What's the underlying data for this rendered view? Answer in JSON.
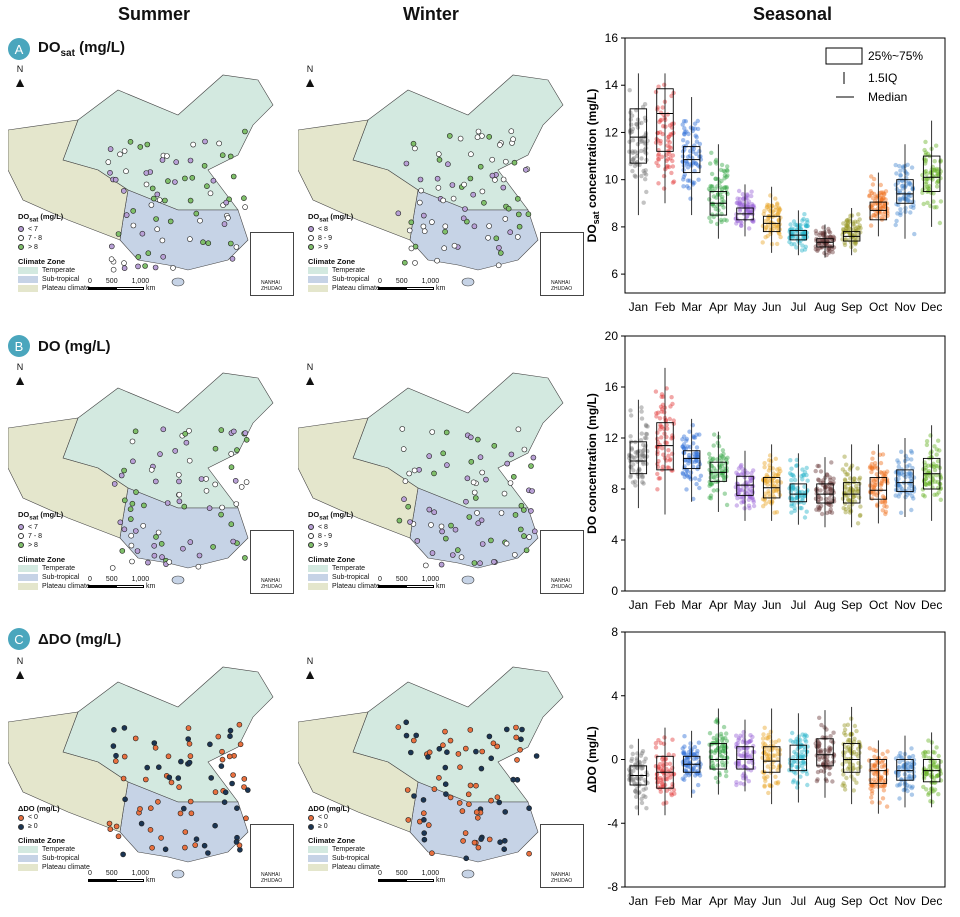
{
  "columns": {
    "summer": "Summer",
    "winter": "Winter",
    "seasonal": "Seasonal"
  },
  "rows": [
    {
      "letter": "A",
      "title": "DO",
      "title_sub": "sat",
      "title_unit": " (mg/L)"
    },
    {
      "letter": "B",
      "title": "DO (mg/L)"
    },
    {
      "letter": "C",
      "title": "ΔDO (mg/L)"
    }
  ],
  "map_legend": {
    "climate_title": "Climate Zone",
    "zones": [
      {
        "label": "Temperate",
        "color": "#d3e9e0"
      },
      {
        "label": "Sub-tropical",
        "color": "#c6d3e6"
      },
      {
        "label": "Plateau climate",
        "color": "#e4e6cc"
      }
    ],
    "scale_ticks": [
      "0",
      "500",
      "1,000"
    ],
    "scale_unit": "km",
    "inset_text": [
      "NANHAI",
      "ZHUDAO"
    ],
    "north": "N"
  },
  "map_legends": {
    "A_summer": {
      "title": "DO",
      "title_sub": "sat",
      "title_unit": " (mg/L)",
      "items": [
        {
          "label": "< 7",
          "color": "#b8a0d6"
        },
        {
          "label": "7 - 8",
          "color": "#ffffff"
        },
        {
          "label": "> 8",
          "color": "#7fbf6a"
        }
      ]
    },
    "A_winter": {
      "title": "DO",
      "title_sub": "sat",
      "title_unit": " (mg/L)",
      "items": [
        {
          "label": "< 8",
          "color": "#b8a0d6"
        },
        {
          "label": "8 - 9",
          "color": "#ffffff"
        },
        {
          "label": "> 9",
          "color": "#7fbf6a"
        }
      ]
    },
    "B_summer": {
      "title": "DO",
      "title_sub": "sat",
      "title_unit": " (mg/L)",
      "items": [
        {
          "label": "< 7",
          "color": "#b8a0d6"
        },
        {
          "label": "7 - 8",
          "color": "#ffffff"
        },
        {
          "label": "> 8",
          "color": "#7fbf6a"
        }
      ]
    },
    "B_winter": {
      "title": "DO",
      "title_sub": "sat",
      "title_unit": " (mg/L)",
      "items": [
        {
          "label": "< 8",
          "color": "#b8a0d6"
        },
        {
          "label": "8 - 9",
          "color": "#ffffff"
        },
        {
          "label": "> 9",
          "color": "#7fbf6a"
        }
      ]
    },
    "C_summer": {
      "title": "ΔDO (mg/L)",
      "title_sub": "",
      "title_unit": "",
      "items": [
        {
          "label": "< 0",
          "color": "#e8703f"
        },
        {
          "label": "≥ 0",
          "color": "#1b3553"
        }
      ]
    },
    "C_winter": {
      "title": "ΔDO (mg/L)",
      "title_sub": "",
      "title_unit": "",
      "items": [
        {
          "label": "< 0",
          "color": "#e8703f"
        },
        {
          "label": "≥ 0",
          "color": "#1b3553"
        }
      ]
    }
  },
  "box_legend": [
    "25%~75%",
    "1.5IQ",
    "Median"
  ],
  "month_colors": [
    "#7a7a7a",
    "#e23b3b",
    "#2f6fd6",
    "#3aa84a",
    "#9a63d6",
    "#e8a72a",
    "#27b3c9",
    "#6b3b3b",
    "#9a9a2a",
    "#f07020",
    "#4a8ad0",
    "#6ab32a"
  ],
  "chart_data": [
    {
      "type": "box",
      "ylabel": "DO",
      "ylabel_sub": "sat",
      "ylabel_rest": " concentration (mg/L)",
      "categories": [
        "Jan",
        "Feb",
        "Mar",
        "Apr",
        "May",
        "Jun",
        "Jul",
        "Aug",
        "Sep",
        "Oct",
        "Nov",
        "Dec"
      ],
      "ylim": [
        5.2,
        16
      ],
      "yticks": [
        6,
        8,
        10,
        12,
        14,
        16
      ],
      "q1": [
        10.7,
        11.2,
        10.3,
        8.5,
        8.3,
        7.8,
        7.45,
        7.15,
        7.4,
        8.3,
        9.0,
        9.5
      ],
      "median": [
        11.8,
        12.8,
        10.85,
        9.0,
        8.55,
        8.15,
        7.65,
        7.35,
        7.6,
        8.7,
        9.4,
        10.1
      ],
      "q3": [
        13.0,
        13.85,
        11.4,
        9.5,
        8.8,
        8.45,
        7.85,
        7.5,
        7.8,
        9.05,
        10.0,
        11.0
      ],
      "whisker_low": [
        8.5,
        9.0,
        8.5,
        7.5,
        7.6,
        6.9,
        6.8,
        6.7,
        6.8,
        7.6,
        7.5,
        8.0
      ],
      "whisker_high": [
        14.5,
        14.5,
        13.5,
        11.5,
        9.8,
        9.7,
        8.7,
        8.1,
        8.8,
        10.3,
        11.5,
        12.5
      ]
    },
    {
      "type": "box",
      "ylabel": "DO concentration (mg/L)",
      "categories": [
        "Jan",
        "Feb",
        "Mar",
        "Apr",
        "May",
        "Jun",
        "Jul",
        "Aug",
        "Sep",
        "Oct",
        "Nov",
        "Dec"
      ],
      "ylim": [
        0,
        20
      ],
      "yticks": [
        0,
        4,
        8,
        12,
        16,
        20
      ],
      "q1": [
        9.2,
        9.5,
        9.6,
        8.6,
        7.5,
        7.3,
        7.0,
        6.9,
        6.9,
        7.2,
        7.8,
        8.0
      ],
      "median": [
        10.2,
        11.4,
        10.4,
        9.3,
        8.3,
        8.1,
        7.6,
        7.6,
        7.6,
        7.9,
        8.5,
        9.2
      ],
      "q3": [
        11.7,
        13.2,
        11.0,
        10.1,
        9.0,
        8.9,
        8.4,
        8.4,
        8.5,
        8.9,
        9.5,
        10.4
      ],
      "whisker_low": [
        6.5,
        6.0,
        7.0,
        6.2,
        5.5,
        5.5,
        5.2,
        5.0,
        5.0,
        5.3,
        5.8,
        5.5
      ],
      "whisker_high": [
        15.0,
        17.5,
        13.5,
        12.5,
        11.0,
        11.5,
        10.8,
        10.5,
        11.5,
        11.5,
        12.0,
        13.0
      ]
    },
    {
      "type": "box",
      "ylabel": "ΔDO (mg/L)",
      "categories": [
        "Jan",
        "Feb",
        "Mar",
        "Apr",
        "May",
        "Jun",
        "Jul",
        "Aug",
        "Sep",
        "Oct",
        "Nov",
        "Dec"
      ],
      "ylim": [
        -8,
        8
      ],
      "yticks": [
        -8,
        -4,
        0,
        4,
        8
      ],
      "q1": [
        -1.6,
        -1.8,
        -0.8,
        -0.6,
        -0.6,
        -0.8,
        -0.7,
        -0.4,
        -0.8,
        -1.5,
        -1.3,
        -1.4
      ],
      "median": [
        -1.0,
        -0.8,
        -0.3,
        0.0,
        0.0,
        -0.1,
        0.0,
        0.3,
        0.0,
        -0.7,
        -0.7,
        -0.7
      ],
      "q3": [
        -0.4,
        0.2,
        0.2,
        1.0,
        0.8,
        0.8,
        0.9,
        1.3,
        1.0,
        0.0,
        0.0,
        0.0
      ],
      "whisker_low": [
        -3.5,
        -3.5,
        -2.4,
        -2.2,
        -2.0,
        -2.8,
        -2.7,
        -2.4,
        -2.8,
        -3.4,
        -3.0,
        -3.0
      ],
      "whisker_high": [
        1.3,
        2.0,
        1.8,
        3.2,
        2.5,
        3.2,
        2.9,
        3.1,
        3.3,
        1.2,
        1.5,
        1.7
      ]
    }
  ]
}
